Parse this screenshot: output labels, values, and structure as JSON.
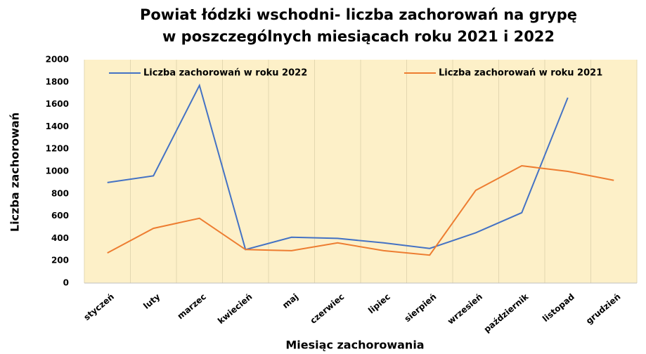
{
  "chart_data": {
    "type": "line",
    "title": [
      "Powiat łódzki wschodni- liczba zachorowań na grypę",
      "w poszczególnych miesiącach roku 2021 i 2022"
    ],
    "xlabel": "Miesiąc zachorowania",
    "ylabel": "Liczba zachorowań",
    "categories": [
      "styczeń",
      "luty",
      "marzec",
      "kwiecień",
      "maj",
      "czerwiec",
      "lipiec",
      "sierpień",
      "wrzesień",
      "październik",
      "listopad",
      "grudzień"
    ],
    "series": [
      {
        "name": "Liczba zachorowań w roku 2022",
        "color": "#4472c4",
        "values": [
          900,
          960,
          1770,
          300,
          410,
          400,
          360,
          310,
          450,
          630,
          1660,
          null
        ]
      },
      {
        "name": "Liczba zachorowań w roku 2021",
        "color": "#ed7d31",
        "values": [
          270,
          490,
          580,
          300,
          290,
          360,
          290,
          250,
          830,
          1050,
          1000,
          920
        ]
      }
    ],
    "ylim": [
      0,
      2000
    ],
    "yticks": [
      0,
      200,
      400,
      600,
      800,
      1000,
      1200,
      1400,
      1600,
      1800,
      2000
    ],
    "legend": "top",
    "plot_background": "#fdf0c8"
  }
}
